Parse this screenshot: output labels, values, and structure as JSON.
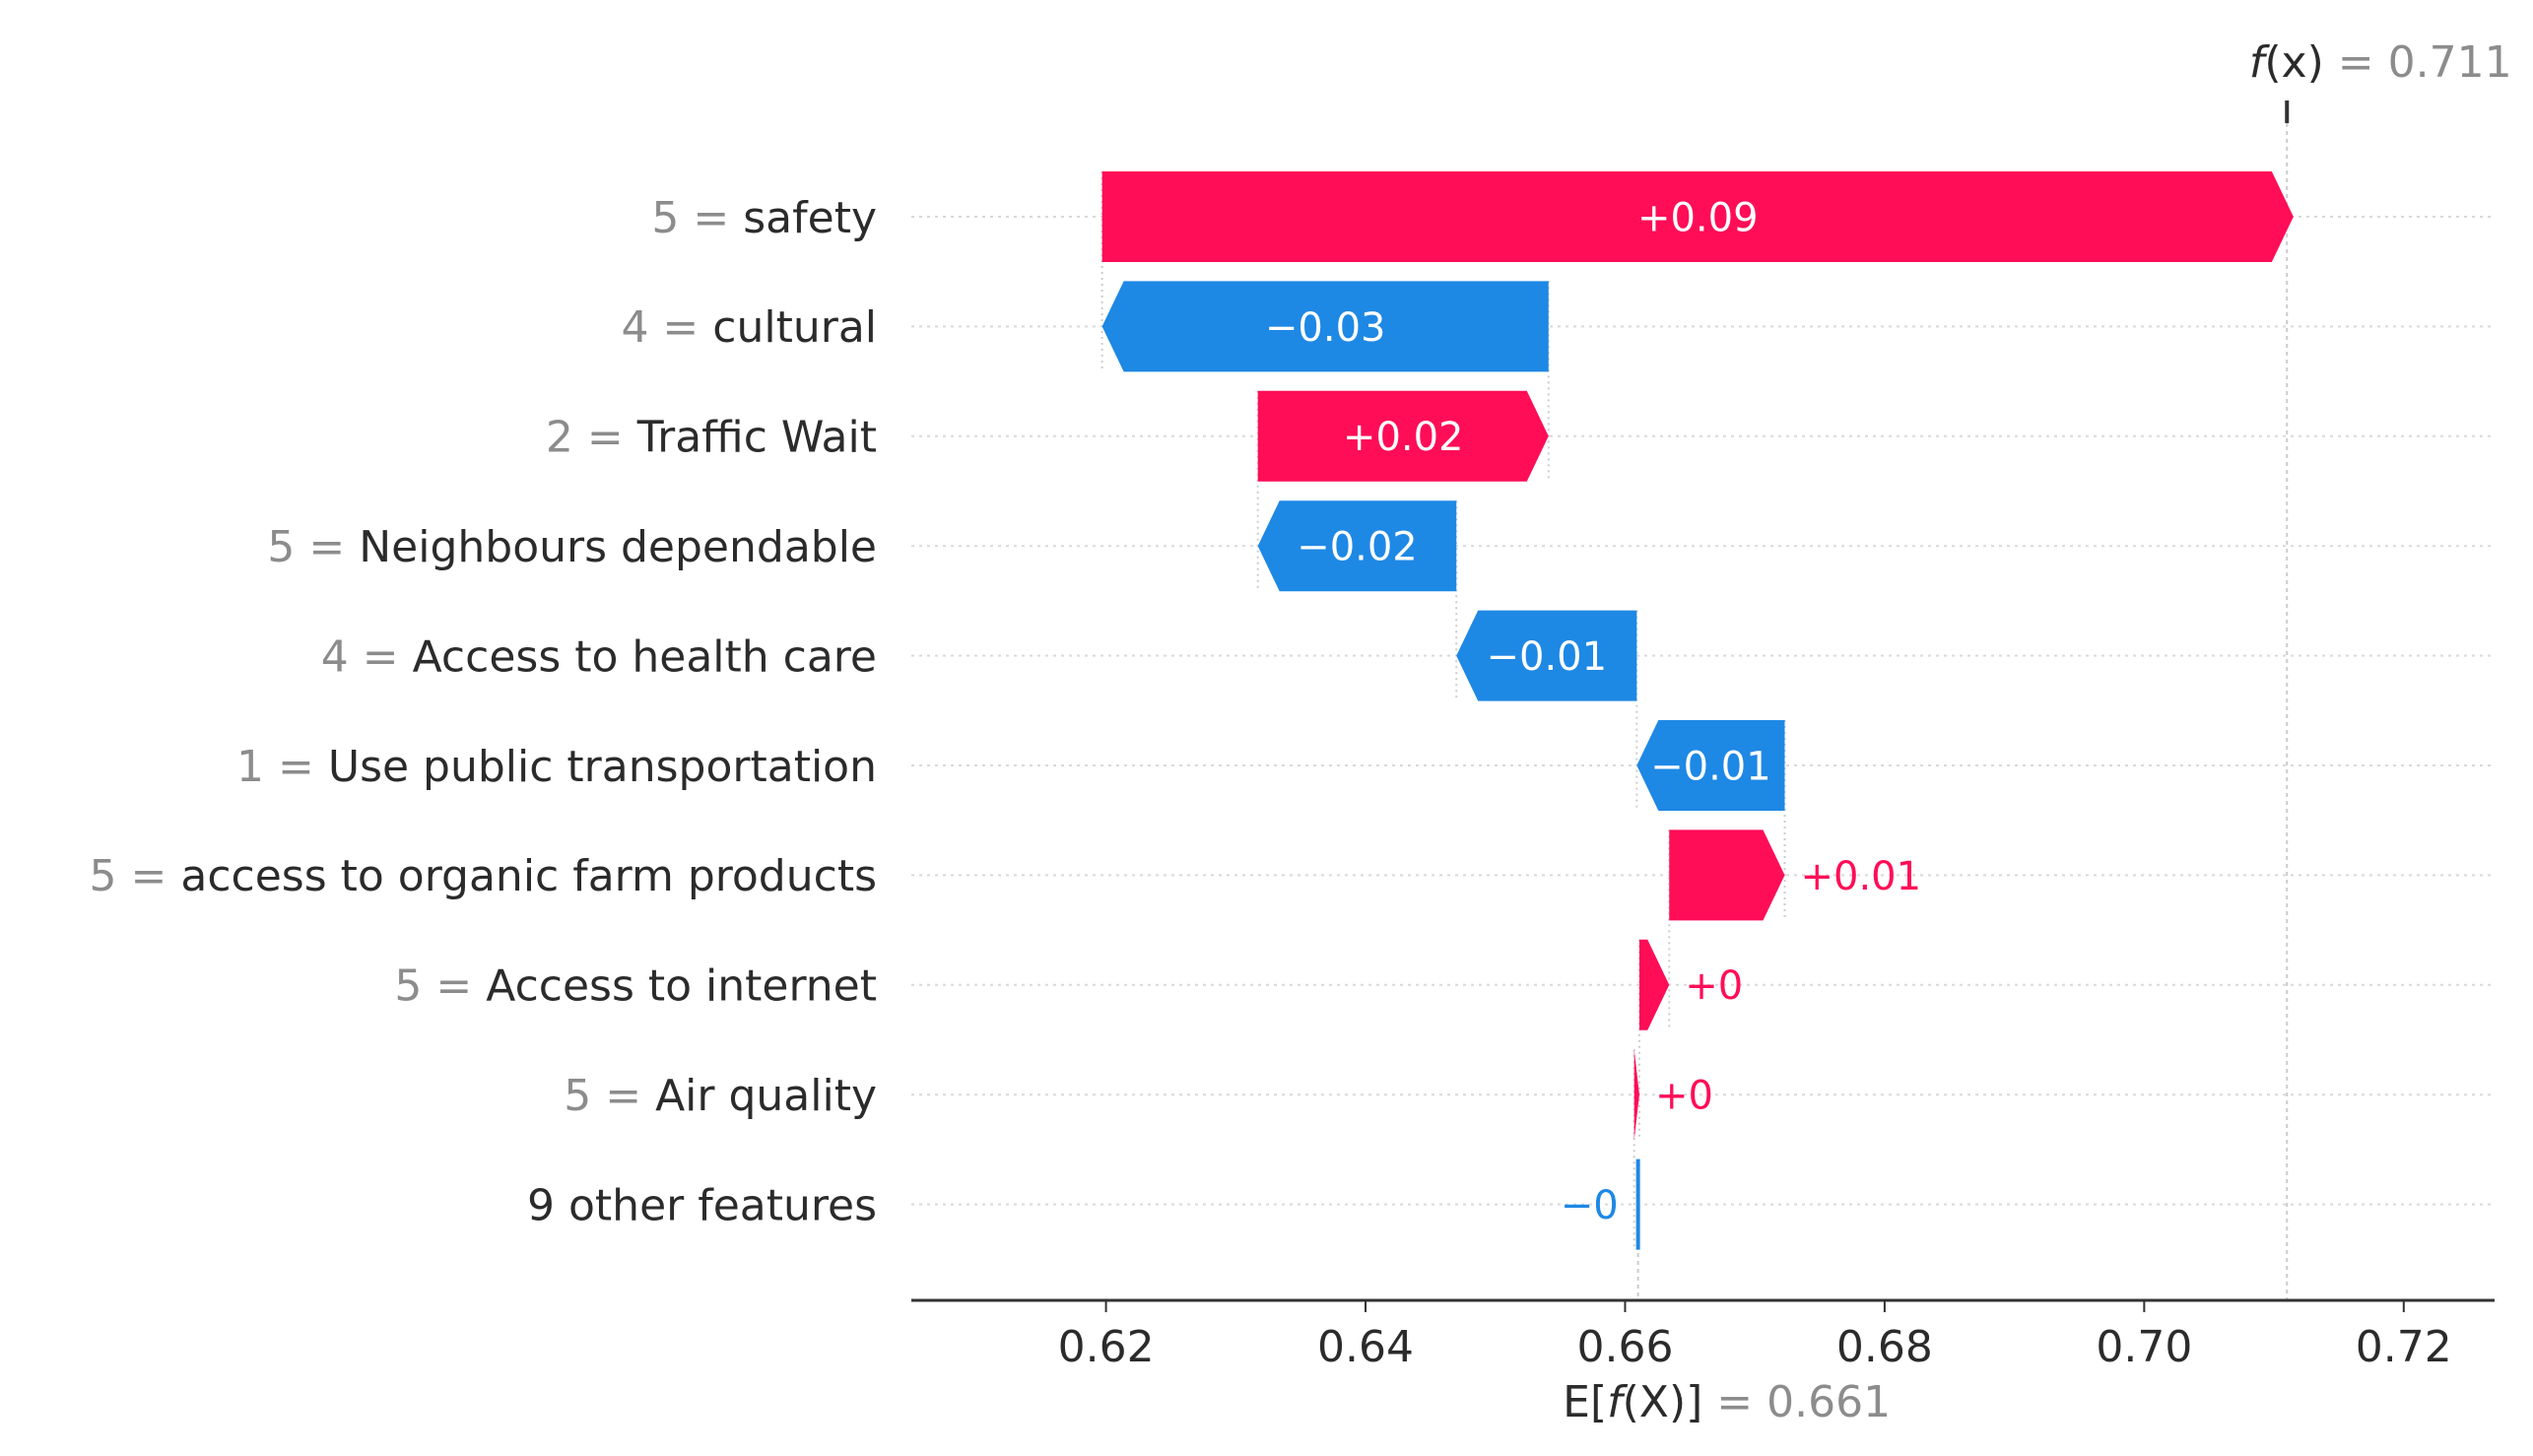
{
  "chart_data": {
    "type": "waterfall",
    "title": "",
    "xlabel": "",
    "ylabel": "",
    "xlim": [
      0.605,
      0.727
    ],
    "ticks": [
      {
        "value": 0.62,
        "label": "0.62"
      },
      {
        "value": 0.64,
        "label": "0.64"
      },
      {
        "value": 0.66,
        "label": "0.66"
      },
      {
        "value": 0.68,
        "label": "0.68"
      },
      {
        "value": 0.7,
        "label": "0.70"
      },
      {
        "value": 0.72,
        "label": "0.72"
      }
    ],
    "base_value": 0.661,
    "output_value": 0.711,
    "base_label": {
      "prefix": "E[",
      "func": "f",
      "arg": "(X)",
      "suffix": "]",
      "eq": " = ",
      "value": "0.661"
    },
    "output_label": {
      "func": "f",
      "arg": "(x)",
      "eq": " = ",
      "value": "0.711"
    },
    "colors": {
      "positive": "#ff0d57",
      "negative": "#1e88e5",
      "text": "#2b2b2b",
      "muted": "#8c8c8c",
      "grid": "#cccccc",
      "axis": "#333333"
    },
    "features": [
      {
        "value_text": "5",
        "eq": " = ",
        "name": "safety",
        "shap": 0.0918,
        "label": "+0.09"
      },
      {
        "value_text": "4",
        "eq": " = ",
        "name": "cultural",
        "shap": -0.0344,
        "label": "−0.03"
      },
      {
        "value_text": "2",
        "eq": " = ",
        "name": "Traffic Wait",
        "shap": 0.0224,
        "label": "+0.02"
      },
      {
        "value_text": "5",
        "eq": " = ",
        "name": "Neighbours dependable",
        "shap": -0.0153,
        "label": "−0.02"
      },
      {
        "value_text": "4",
        "eq": " = ",
        "name": "Access to health care",
        "shap": -0.0139,
        "label": "−0.01"
      },
      {
        "value_text": "1",
        "eq": " = ",
        "name": "Use public transportation",
        "shap": -0.0114,
        "label": "−0.01"
      },
      {
        "value_text": "5",
        "eq": " = ",
        "name": "access to organic farm products",
        "shap": 0.0089,
        "label": "+0.01"
      },
      {
        "value_text": "5",
        "eq": " = ",
        "name": "Access to internet",
        "shap": 0.0023,
        "label": "+0"
      },
      {
        "value_text": "5",
        "eq": " = ",
        "name": "Air quality",
        "shap": 0.0004,
        "label": "+0"
      },
      {
        "value_text": "",
        "eq": "",
        "name": "9 other features",
        "shap": -0.0003,
        "label": "−0"
      }
    ]
  }
}
